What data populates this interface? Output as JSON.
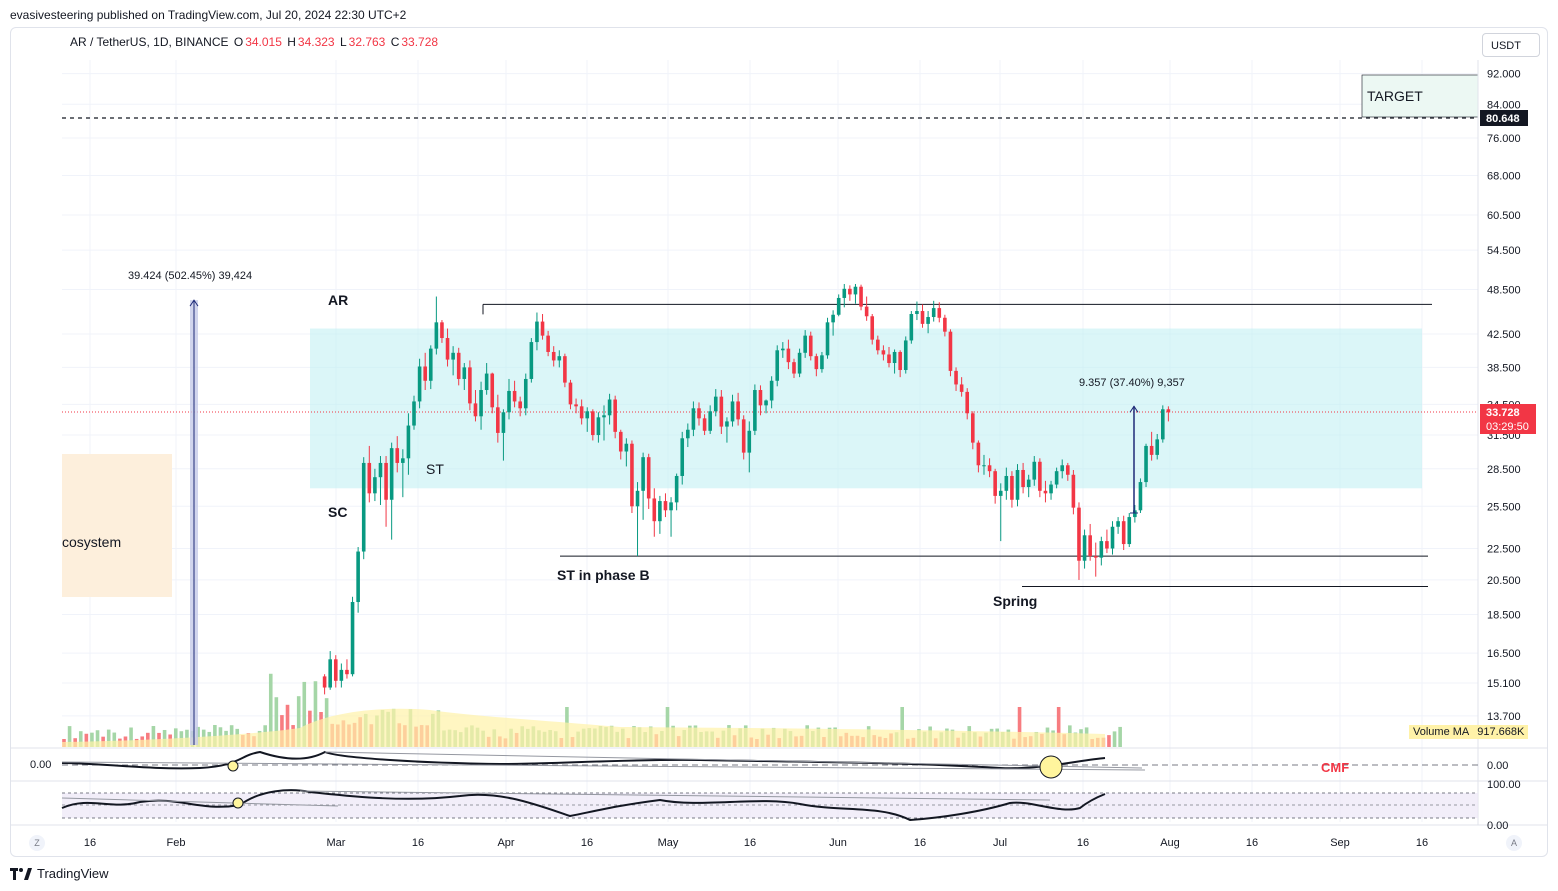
{
  "header": {
    "published_by": "evasivesteering published on TradingView.com, Jul 20, 2024 22:30 UTC+2"
  },
  "legend": {
    "symbol": "AR / TetherUS, 1D, BINANCE",
    "o_label": "O",
    "o_value": "34.015",
    "h_label": "H",
    "h_value": "34.323",
    "l_label": "L",
    "l_value": "32.763",
    "c_label": "C",
    "c_value": "33.728"
  },
  "currency_button": "USDT",
  "price_axis": {
    "ticks": [
      "92.000",
      "84.000",
      "76.000",
      "68.000",
      "60.500",
      "54.500",
      "48.500",
      "42.500",
      "38.500",
      "34.500",
      "31.500",
      "28.500",
      "25.500",
      "22.500",
      "20.500",
      "18.500",
      "16.500",
      "15.100",
      "13.700"
    ],
    "target_price": "80.648",
    "last_price": "33.728",
    "countdown": "03:29:50"
  },
  "time_axis": {
    "ticks": [
      "16",
      "Feb",
      "Mar",
      "16",
      "Apr",
      "16",
      "May",
      "16",
      "Jun",
      "16",
      "Jul",
      "16",
      "Aug",
      "16",
      "Sep",
      "16"
    ]
  },
  "annotations": {
    "measure_left": "39.424 (502.45%) 39,424",
    "measure_right": "9.357 (37.40%) 9,357",
    "label_ar": "AR",
    "label_sc": "SC",
    "label_st": "ST",
    "label_st_phase_b": "ST in phase B",
    "label_spring": "Spring",
    "label_ecosystem": "cosystem",
    "label_target": "TARGET"
  },
  "volume": {
    "ma_label": "Volume MA",
    "ma_value": "917.668K"
  },
  "cmf": {
    "zero_label_left": "0.00",
    "zero_label_right": "0.00",
    "name": "CMF"
  },
  "oscillator": {
    "top_label": "100.00",
    "bottom_label": "0.00"
  },
  "footer": {
    "brand": "TradingView",
    "left_corner": "Z",
    "right_corner": "A"
  },
  "colors": {
    "up": "#089981",
    "down": "#f23645",
    "range_fill": "#bdeff2",
    "ecosystem_fill": "#fdefdc",
    "cmf_label": "#f23645"
  },
  "chart_data": {
    "type": "candlestick",
    "symbol": "AR / TetherUS",
    "interval": "1D",
    "exchange": "BINANCE",
    "scale": "log",
    "ylim": [
      13.7,
      92
    ],
    "candles": [
      [
        15.4,
        15.5,
        14.6,
        14.9
      ],
      [
        14.9,
        16.6,
        14.8,
        16.2
      ],
      [
        16.2,
        16.4,
        14.9,
        15.2
      ],
      [
        15.2,
        16.0,
        14.9,
        15.7
      ],
      [
        15.7,
        16.2,
        15.3,
        15.5
      ],
      [
        15.5,
        19.5,
        15.4,
        19.2
      ],
      [
        19.2,
        22.6,
        18.6,
        22.3
      ],
      [
        22.3,
        29.5,
        21.8,
        29.0
      ],
      [
        29.0,
        30.5,
        25.8,
        26.5
      ],
      [
        26.5,
        28.5,
        25.9,
        27.8
      ],
      [
        27.8,
        29.6,
        25.6,
        29.0
      ],
      [
        29.0,
        29.6,
        24.0,
        26.0
      ],
      [
        26.0,
        30.8,
        23.1,
        30.3
      ],
      [
        30.3,
        31.4,
        28.2,
        29.0
      ],
      [
        29.0,
        30.2,
        26.2,
        29.4
      ],
      [
        29.4,
        33.6,
        28.0,
        32.4
      ],
      [
        32.4,
        35.4,
        32.0,
        34.8
      ],
      [
        34.8,
        39.5,
        34.1,
        38.6
      ],
      [
        38.6,
        40.2,
        36.0,
        37.0
      ],
      [
        37.0,
        41.1,
        36.1,
        40.7
      ],
      [
        40.7,
        47.5,
        40.0,
        44.0
      ],
      [
        44.0,
        44.3,
        41.4,
        42.0
      ],
      [
        42.0,
        43.2,
        38.6,
        39.4
      ],
      [
        39.4,
        41.0,
        37.6,
        40.2
      ],
      [
        40.2,
        40.8,
        36.5,
        37.2
      ],
      [
        37.2,
        39.0,
        36.0,
        38.5
      ],
      [
        38.5,
        39.3,
        33.9,
        34.6
      ],
      [
        34.6,
        36.0,
        32.8,
        33.3
      ],
      [
        33.3,
        36.9,
        32.0,
        36.0
      ],
      [
        36.0,
        39.0,
        35.5,
        37.8
      ],
      [
        37.8,
        37.9,
        33.6,
        34.2
      ],
      [
        34.2,
        35.5,
        30.8,
        31.7
      ],
      [
        31.7,
        34.0,
        29.2,
        33.7
      ],
      [
        33.7,
        37.2,
        33.0,
        35.9
      ],
      [
        35.9,
        37.0,
        34.2,
        34.8
      ],
      [
        34.8,
        35.3,
        33.3,
        34.1
      ],
      [
        34.1,
        37.8,
        33.4,
        37.2
      ],
      [
        37.2,
        42.0,
        36.8,
        41.5
      ],
      [
        41.5,
        45.3,
        40.5,
        44.1
      ],
      [
        44.1,
        45.1,
        41.8,
        42.3
      ],
      [
        42.3,
        42.9,
        39.8,
        40.3
      ],
      [
        40.3,
        41.0,
        38.6,
        39.3
      ],
      [
        39.3,
        40.5,
        38.5,
        39.8
      ],
      [
        39.8,
        40.1,
        36.3,
        36.8
      ],
      [
        36.8,
        37.1,
        34.0,
        34.5
      ],
      [
        34.5,
        35.1,
        33.6,
        34.3
      ],
      [
        34.3,
        35.0,
        32.5,
        33.1
      ],
      [
        33.1,
        34.2,
        31.8,
        33.8
      ],
      [
        33.8,
        34.0,
        31.0,
        31.5
      ],
      [
        31.5,
        33.7,
        30.8,
        33.2
      ],
      [
        33.2,
        34.4,
        31.0,
        33.4
      ],
      [
        33.4,
        35.6,
        32.5,
        35.0
      ],
      [
        35.0,
        35.4,
        31.2,
        31.8
      ],
      [
        31.8,
        32.0,
        29.3,
        30.0
      ],
      [
        30.0,
        31.2,
        28.7,
        30.7
      ],
      [
        30.7,
        31.0,
        25.0,
        25.5
      ],
      [
        25.5,
        27.4,
        22.0,
        26.7
      ],
      [
        26.7,
        29.9,
        24.5,
        29.5
      ],
      [
        29.5,
        29.8,
        25.3,
        26.1
      ],
      [
        26.1,
        26.9,
        23.3,
        24.4
      ],
      [
        24.4,
        26.3,
        23.5,
        25.9
      ],
      [
        25.9,
        26.5,
        24.7,
        25.2
      ],
      [
        25.2,
        26.2,
        23.3,
        25.8
      ],
      [
        25.8,
        28.1,
        25.2,
        27.9
      ],
      [
        27.9,
        31.8,
        27.2,
        31.2
      ],
      [
        31.2,
        32.6,
        30.4,
        32.0
      ],
      [
        32.0,
        34.8,
        31.4,
        34.1
      ],
      [
        34.1,
        34.7,
        32.4,
        33.1
      ],
      [
        33.1,
        33.5,
        31.5,
        31.9
      ],
      [
        31.9,
        34.4,
        31.6,
        33.8
      ],
      [
        33.8,
        36.1,
        33.3,
        35.3
      ],
      [
        35.3,
        36.0,
        31.6,
        32.3
      ],
      [
        32.3,
        33.2,
        30.8,
        32.8
      ],
      [
        32.8,
        35.5,
        32.3,
        34.8
      ],
      [
        34.8,
        35.7,
        32.4,
        33.0
      ],
      [
        33.0,
        33.4,
        29.3,
        29.9
      ],
      [
        29.9,
        32.8,
        28.2,
        31.9
      ],
      [
        31.9,
        36.6,
        31.5,
        36.0
      ],
      [
        36.0,
        36.5,
        33.4,
        34.4
      ],
      [
        34.4,
        35.0,
        33.6,
        34.9
      ],
      [
        34.9,
        37.5,
        34.1,
        37.0
      ],
      [
        37.0,
        41.1,
        36.4,
        40.5
      ],
      [
        40.5,
        41.5,
        39.6,
        40.7
      ],
      [
        40.7,
        41.8,
        38.3,
        39.1
      ],
      [
        39.1,
        39.5,
        37.3,
        37.8
      ],
      [
        37.8,
        40.7,
        37.4,
        40.2
      ],
      [
        40.2,
        43.0,
        39.6,
        42.3
      ],
      [
        42.3,
        42.8,
        39.3,
        39.8
      ],
      [
        39.8,
        40.1,
        37.5,
        38.3
      ],
      [
        38.3,
        40.3,
        37.9,
        39.9
      ],
      [
        39.9,
        44.6,
        39.5,
        44.0
      ],
      [
        44.0,
        45.6,
        42.3,
        45.0
      ],
      [
        45.0,
        47.8,
        44.8,
        47.3
      ],
      [
        47.3,
        49.3,
        46.0,
        48.6
      ],
      [
        48.6,
        49.1,
        46.9,
        47.8
      ],
      [
        47.8,
        49.3,
        46.5,
        48.9
      ],
      [
        48.9,
        49.2,
        45.6,
        46.1
      ],
      [
        46.1,
        47.5,
        44.2,
        44.8
      ],
      [
        44.8,
        45.1,
        41.2,
        41.8
      ],
      [
        41.8,
        42.3,
        40.0,
        40.5
      ],
      [
        40.5,
        41.1,
        39.3,
        40.0
      ],
      [
        40.0,
        40.9,
        38.5,
        39.0
      ],
      [
        39.0,
        40.6,
        37.8,
        40.3
      ],
      [
        40.3,
        40.5,
        37.4,
        38.2
      ],
      [
        38.2,
        42.2,
        37.8,
        41.7
      ],
      [
        41.7,
        45.5,
        41.3,
        45.1
      ],
      [
        45.1,
        46.8,
        44.3,
        45.5
      ],
      [
        45.5,
        46.4,
        43.3,
        43.8
      ],
      [
        43.8,
        45.5,
        42.6,
        44.7
      ],
      [
        44.7,
        46.9,
        44.1,
        45.9
      ],
      [
        45.9,
        46.7,
        44.0,
        44.6
      ],
      [
        44.6,
        45.0,
        42.2,
        42.8
      ],
      [
        42.8,
        43.1,
        37.5,
        38.1
      ],
      [
        38.1,
        38.5,
        35.9,
        36.6
      ],
      [
        36.6,
        37.4,
        35.3,
        35.8
      ],
      [
        35.8,
        36.2,
        33.0,
        33.6
      ],
      [
        33.6,
        33.8,
        30.2,
        30.8
      ],
      [
        30.8,
        31.0,
        28.2,
        28.8
      ],
      [
        28.8,
        29.7,
        28.0,
        28.8
      ],
      [
        28.8,
        29.4,
        27.8,
        28.3
      ],
      [
        28.3,
        28.5,
        25.7,
        26.3
      ],
      [
        26.3,
        27.3,
        23.0,
        26.7
      ],
      [
        26.7,
        28.6,
        26.0,
        27.9
      ],
      [
        27.9,
        28.3,
        25.4,
        26.0
      ],
      [
        26.0,
        28.9,
        25.5,
        28.4
      ],
      [
        28.4,
        29.0,
        26.5,
        27.0
      ],
      [
        27.0,
        28.0,
        26.2,
        27.6
      ],
      [
        27.6,
        29.6,
        27.1,
        29.1
      ],
      [
        29.1,
        29.4,
        26.2,
        26.7
      ],
      [
        26.7,
        27.5,
        25.8,
        26.5
      ],
      [
        26.5,
        27.5,
        26.0,
        27.2
      ],
      [
        27.2,
        28.6,
        26.9,
        28.3
      ],
      [
        28.3,
        29.3,
        27.7,
        28.8
      ],
      [
        28.8,
        29.0,
        27.5,
        28.0
      ],
      [
        28.0,
        28.4,
        24.9,
        25.4
      ],
      [
        25.4,
        25.8,
        20.5,
        21.7
      ],
      [
        21.7,
        23.8,
        21.2,
        23.4
      ],
      [
        23.4,
        24.2,
        21.7,
        22.0
      ],
      [
        22.0,
        22.9,
        20.7,
        21.9
      ],
      [
        21.9,
        23.3,
        21.4,
        23.0
      ],
      [
        23.0,
        23.8,
        22.2,
        22.5
      ],
      [
        22.5,
        24.4,
        22.1,
        24.0
      ],
      [
        24.0,
        24.7,
        23.5,
        24.4
      ],
      [
        24.4,
        24.8,
        22.4,
        22.8
      ],
      [
        22.8,
        25.0,
        22.6,
        24.7
      ],
      [
        24.7,
        25.6,
        24.3,
        25.2
      ],
      [
        25.2,
        27.7,
        25.0,
        27.4
      ],
      [
        27.4,
        30.7,
        27.0,
        30.5
      ],
      [
        30.5,
        31.8,
        29.2,
        29.7
      ],
      [
        29.7,
        31.6,
        29.3,
        31.1
      ],
      [
        31.1,
        34.4,
        30.8,
        34.0
      ],
      [
        34.0,
        34.3,
        32.8,
        33.7
      ]
    ],
    "levels": {
      "ar_resistance": 46.4,
      "range_top": 43.2,
      "range_bottom": 26.9,
      "st_support": 22.0,
      "spring_support": 20.1,
      "target": 80.648
    },
    "measurements": [
      {
        "label": "39.424 (502.45%) 39,424"
      },
      {
        "label": "9.357 (37.40%) 9,357"
      }
    ]
  }
}
